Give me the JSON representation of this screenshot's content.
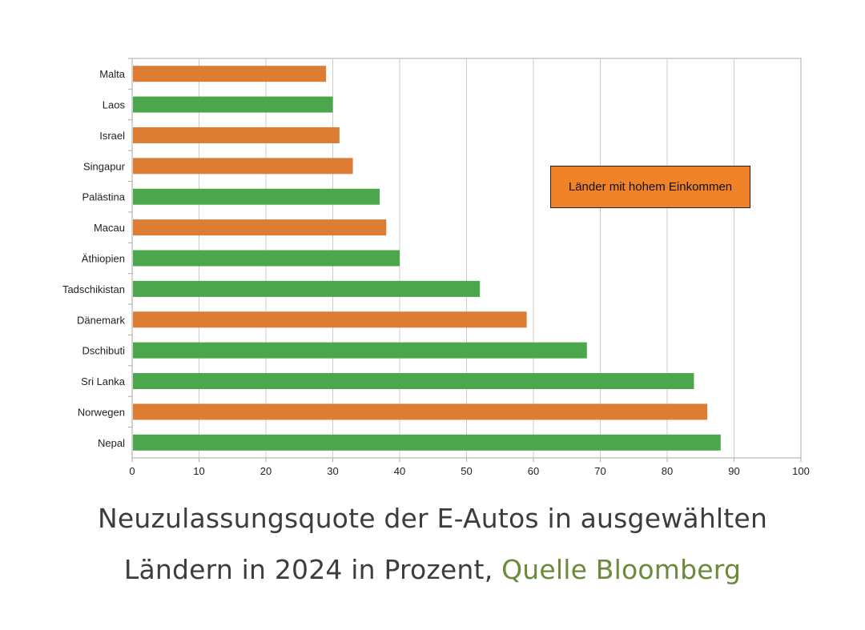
{
  "chart_data": {
    "type": "bar",
    "orientation": "horizontal",
    "categories": [
      "Malta",
      "Laos",
      "Israel",
      "Singapur",
      "Palästina",
      "Macau",
      "Äthiopien",
      "Tadschikistan",
      "Dänemark",
      "Dschibuti",
      "Sri Lanka",
      "Norwegen",
      "Nepal"
    ],
    "values": [
      29,
      30,
      31,
      33,
      37,
      38,
      40,
      52,
      59,
      68,
      84,
      86,
      88
    ],
    "high_income": [
      true,
      false,
      true,
      true,
      false,
      true,
      false,
      false,
      true,
      false,
      false,
      true,
      false
    ],
    "xlim": [
      0,
      100
    ],
    "x_ticks": [
      0,
      10,
      20,
      30,
      40,
      50,
      60,
      70,
      80,
      90,
      100
    ],
    "grid": true,
    "legend": {
      "label": "Länder mit hohem Einkommen",
      "placement": "right-upper"
    },
    "colors": {
      "high_income": "#dc7d33",
      "other": "#4ba64c",
      "grid": "#cccccc",
      "axis": "#aaaaaa"
    }
  },
  "caption": {
    "line1": "Neuzulassungsquote der E-Autos in ausgewählten",
    "line2": "Ländern in 2024 in Prozent, ",
    "source": "Quelle Bloomberg"
  }
}
